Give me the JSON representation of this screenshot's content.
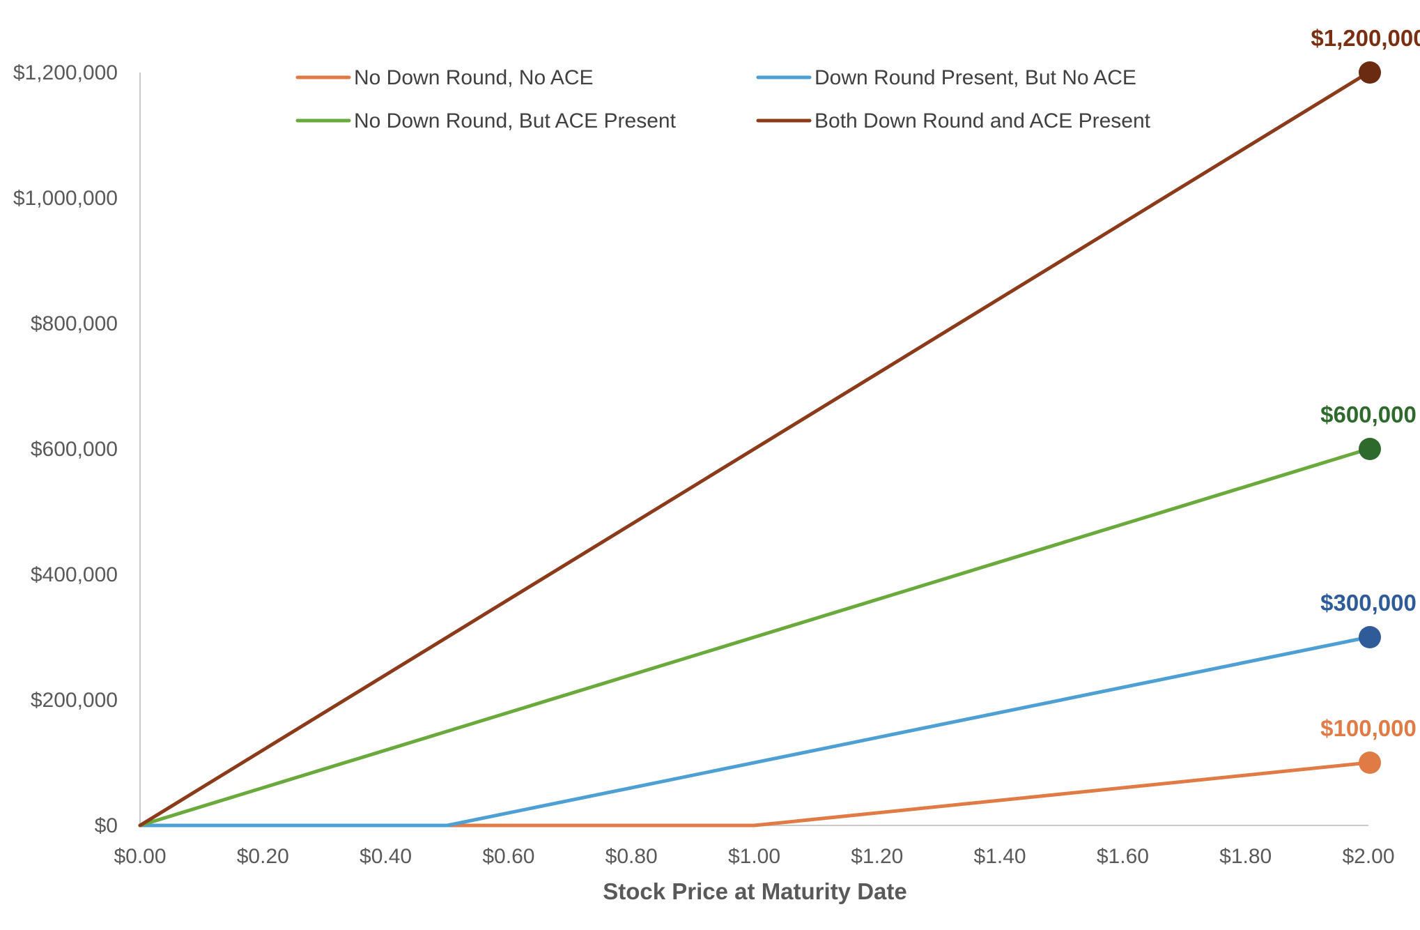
{
  "chart_data": {
    "type": "line",
    "title": "",
    "xlabel": "Stock Price at Maturity Date",
    "ylabel": "",
    "xlim": [
      0,
      2
    ],
    "ylim": [
      0,
      1200000
    ],
    "x_ticks": [
      "$0.00",
      "$0.20",
      "$0.40",
      "$0.60",
      "$0.80",
      "$1.00",
      "$1.20",
      "$1.40",
      "$1.60",
      "$1.80",
      "$2.00"
    ],
    "y_ticks": [
      "$0",
      "$200,000",
      "$400,000",
      "$600,000",
      "$800,000",
      "$1,000,000",
      "$1,200,000"
    ],
    "grid": false,
    "legend_position": "top",
    "series": [
      {
        "name": "No Down Round, No ACE",
        "color": "#E07B45",
        "label_color": "#E07B45",
        "points": [
          [
            0,
            0
          ],
          [
            1.0,
            0
          ],
          [
            2.0,
            100000
          ]
        ],
        "end_label": "$100,000"
      },
      {
        "name": "Down Round Present, But No ACE",
        "color": "#4E9FD3",
        "label_color": "#2F5C99",
        "marker_color": "#2F5C99",
        "points": [
          [
            0,
            0
          ],
          [
            0.5,
            0
          ],
          [
            2.0,
            300000
          ]
        ],
        "end_label": "$300,000"
      },
      {
        "name": "No Down Round, But ACE Present",
        "color": "#6AAA3C",
        "label_color": "#2F6A2D",
        "marker_color": "#2F6A2D",
        "points": [
          [
            0,
            0
          ],
          [
            2.0,
            600000
          ]
        ],
        "end_label": "$600,000"
      },
      {
        "name": "Both Down Round and ACE Present",
        "color": "#8B3A1A",
        "label_color": "#7A2F12",
        "marker_color": "#6B2A12",
        "points": [
          [
            0,
            0
          ],
          [
            2.0,
            1200000
          ]
        ],
        "end_label": "$1,200,000"
      }
    ]
  }
}
